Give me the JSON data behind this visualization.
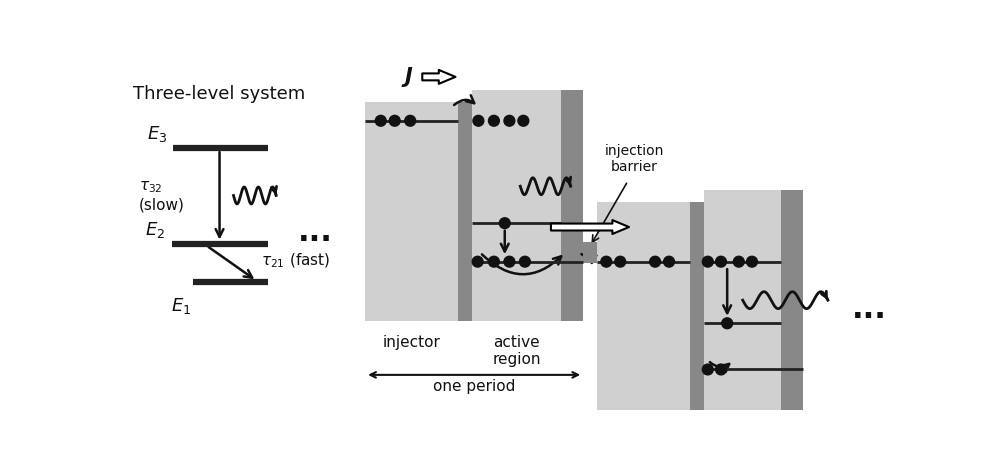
{
  "bg_color": "#ffffff",
  "level_color": "#222222",
  "barrier_color_dark": "#808080",
  "barrier_color_inj": "#909090",
  "well_color": "#d0d0d0",
  "dot_color": "#111111",
  "arrow_color": "#111111",
  "text_color": "#111111",
  "title": "Three-level system",
  "E3_label": "$E_3$",
  "E2_label": "$E_2$",
  "E1_label": "$E_1$",
  "tau32_label": "$\\tau_{32}$\n(slow)",
  "tau21_label": "$\\tau_{21}$ (fast)",
  "J_label": "$\\boldsymbol{J}$",
  "injector_label": "injector",
  "active_label": "active\nregion",
  "period_label": "one period",
  "injection_barrier_label": "injection\nbarrier",
  "dots_left": "...",
  "dots_right": "..."
}
